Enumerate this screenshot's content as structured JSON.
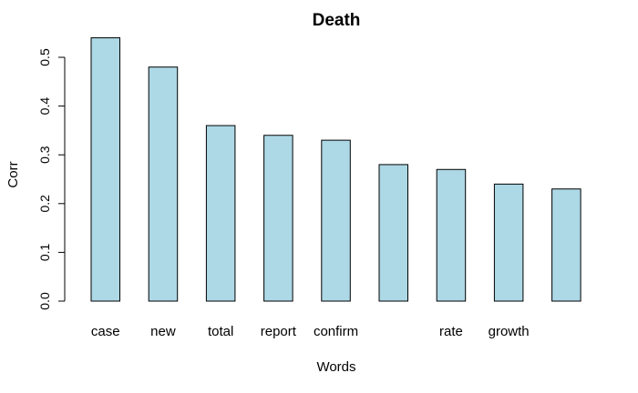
{
  "chart_data": {
    "type": "bar",
    "title": "Death",
    "xlabel": "Words",
    "ylabel": "Corr",
    "categories": [
      "case",
      "new",
      "total",
      "report",
      "confirm",
      "",
      "rate",
      "growth",
      ""
    ],
    "values": [
      0.54,
      0.48,
      0.36,
      0.34,
      0.33,
      0.28,
      0.27,
      0.24,
      0.23
    ],
    "ylim": [
      0,
      0.5
    ],
    "yticks": [
      "0.0",
      "0.1",
      "0.2",
      "0.3",
      "0.4",
      "0.5"
    ],
    "grid": false,
    "colors": {
      "bar_fill": "#add8e6",
      "bar_stroke": "#000000"
    }
  }
}
